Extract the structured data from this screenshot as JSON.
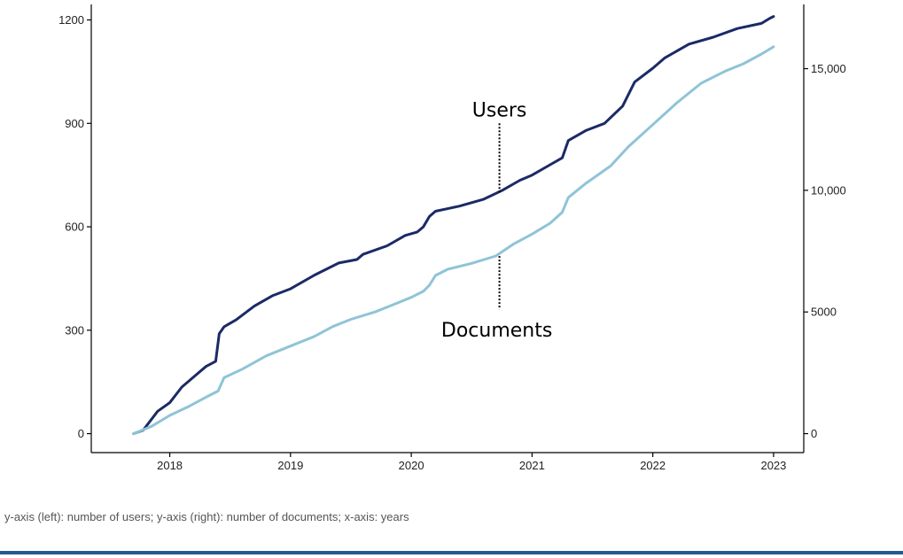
{
  "colors": {
    "users": "#1b2a66",
    "documents": "#8fc4d6",
    "axis": "#000000",
    "footer_rule": "#1f5b8e"
  },
  "chart_data": {
    "type": "line",
    "title": "",
    "xlabel": "",
    "ylabel_left": "",
    "ylabel_right": "",
    "xlim": [
      2017.35,
      2023.25
    ],
    "ylim_left": [
      -55,
      1245
    ],
    "ylim_right": [
      -780,
      17640
    ],
    "x_ticks": [
      2018,
      2019,
      2020,
      2021,
      2022,
      2023
    ],
    "x_tick_labels": [
      "2018",
      "2019",
      "2020",
      "2021",
      "2022",
      "2023"
    ],
    "y_left_ticks": [
      0,
      300,
      600,
      900,
      1200
    ],
    "y_left_tick_labels": [
      "0",
      "300",
      "600",
      "900",
      "1200"
    ],
    "y_right_ticks": [
      0,
      5000,
      10000,
      15000
    ],
    "y_right_tick_labels": [
      "0",
      "5000",
      "10,000",
      "15,000"
    ],
    "grid": false,
    "series": [
      {
        "name": "Users",
        "axis": "left",
        "x": [
          2017.7,
          2017.78,
          2017.9,
          2018.0,
          2018.1,
          2018.2,
          2018.3,
          2018.38,
          2018.41,
          2018.45,
          2018.55,
          2018.7,
          2018.85,
          2019.0,
          2019.2,
          2019.4,
          2019.55,
          2019.6,
          2019.8,
          2019.95,
          2020.05,
          2020.1,
          2020.15,
          2020.2,
          2020.4,
          2020.6,
          2020.75,
          2020.9,
          2021.0,
          2021.15,
          2021.25,
          2021.3,
          2021.45,
          2021.6,
          2021.75,
          2021.85,
          2022.0,
          2022.1,
          2022.3,
          2022.5,
          2022.7,
          2022.9,
          2022.97,
          2023.0
        ],
        "values": [
          0,
          10,
          65,
          90,
          135,
          165,
          195,
          210,
          290,
          310,
          330,
          370,
          400,
          420,
          460,
          495,
          505,
          520,
          545,
          575,
          585,
          600,
          630,
          645,
          660,
          680,
          705,
          735,
          750,
          780,
          800,
          850,
          880,
          900,
          950,
          1020,
          1060,
          1090,
          1130,
          1150,
          1175,
          1190,
          1205,
          1210
        ]
      },
      {
        "name": "Documents",
        "axis": "right",
        "x": [
          2017.7,
          2017.85,
          2018.0,
          2018.15,
          2018.3,
          2018.4,
          2018.45,
          2018.6,
          2018.8,
          2019.0,
          2019.2,
          2019.35,
          2019.5,
          2019.7,
          2019.85,
          2020.0,
          2020.1,
          2020.15,
          2020.2,
          2020.3,
          2020.5,
          2020.7,
          2020.85,
          2021.0,
          2021.15,
          2021.25,
          2021.3,
          2021.45,
          2021.65,
          2021.8,
          2022.0,
          2022.2,
          2022.4,
          2022.6,
          2022.75,
          2022.9,
          2023.0
        ],
        "values": [
          0,
          300,
          750,
          1100,
          1500,
          1750,
          2300,
          2650,
          3200,
          3600,
          4000,
          4400,
          4700,
          5000,
          5300,
          5600,
          5850,
          6100,
          6500,
          6750,
          7000,
          7300,
          7800,
          8200,
          8650,
          9100,
          9700,
          10300,
          11000,
          11800,
          12700,
          13600,
          14400,
          14900,
          15200,
          15600,
          15900
        ]
      }
    ],
    "annotations": [
      {
        "text": "Users",
        "x": 2020.73,
        "y_left": 700,
        "label_pos": "above"
      },
      {
        "text": "Documents",
        "x": 2020.73,
        "y_left": 515,
        "label_pos": "below"
      }
    ]
  },
  "caption": "y-axis (left): number of users; y-axis (right): number of documents; x-axis: years"
}
